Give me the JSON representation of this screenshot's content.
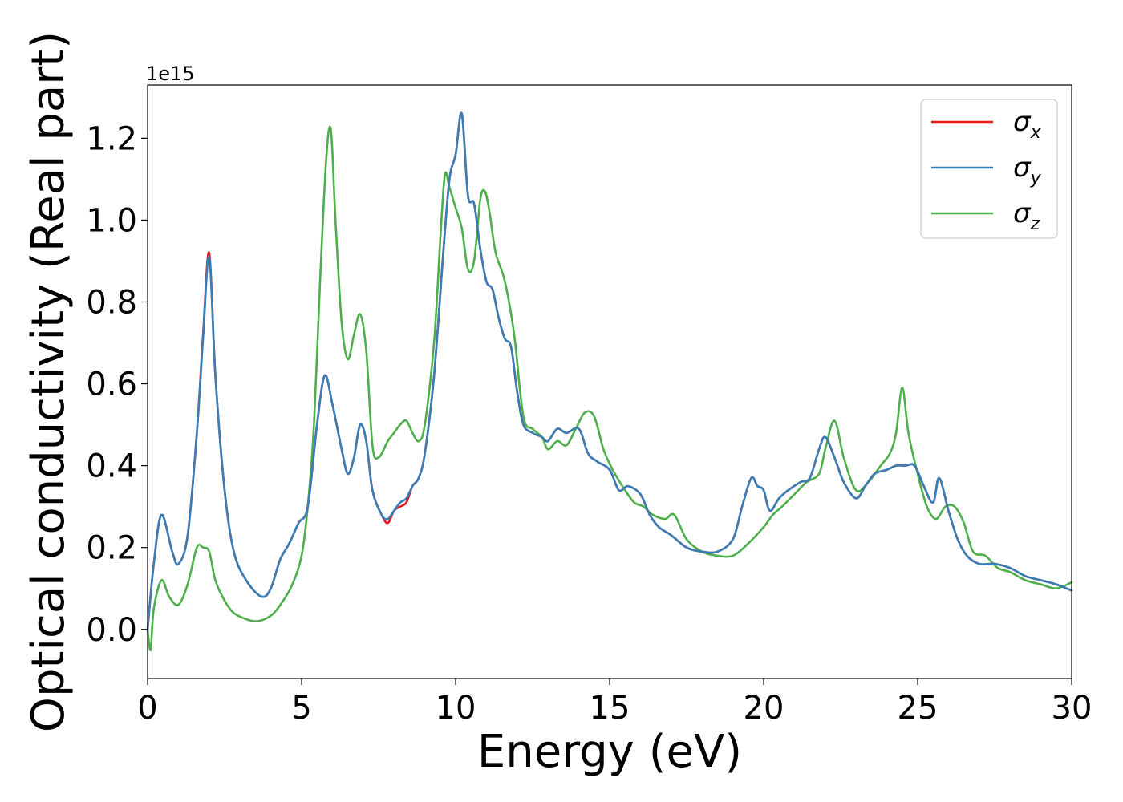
{
  "chart_data": {
    "type": "line",
    "title": "",
    "xlabel": "Energy (eV)",
    "ylabel": "Optical conductivity (Real part)",
    "y_offset_label": "1e15",
    "xlim": [
      0,
      30
    ],
    "ylim": [
      -0.12,
      1.33
    ],
    "xticks": [
      0,
      5,
      10,
      15,
      20,
      25,
      30
    ],
    "xtick_labels": [
      "0",
      "5",
      "10",
      "15",
      "20",
      "25",
      "30"
    ],
    "yticks": [
      0.0,
      0.2,
      0.4,
      0.6,
      0.8,
      1.0,
      1.2
    ],
    "ytick_labels": [
      "0.0",
      "0.2",
      "0.4",
      "0.6",
      "0.8",
      "1.0",
      "1.2"
    ],
    "grid": false,
    "legend_position": "top-right",
    "series": [
      {
        "name": "σx",
        "symbol": "σ",
        "subscript": "x",
        "color": "#e41a1c",
        "x": [
          0,
          0.2,
          0.45,
          0.8,
          1.0,
          1.3,
          1.6,
          1.8,
          2.0,
          2.2,
          2.5,
          2.8,
          3.2,
          3.7,
          4.0,
          4.3,
          4.6,
          4.9,
          5.2,
          5.5,
          5.75,
          6.0,
          6.3,
          6.5,
          6.7,
          6.9,
          7.1,
          7.3,
          7.6,
          7.8,
          8.0,
          8.2,
          8.4,
          8.6,
          8.8,
          9.0,
          9.3,
          9.6,
          9.8,
          10.0,
          10.2,
          10.4,
          10.6,
          10.8,
          11.0,
          11.2,
          11.4,
          11.6,
          11.8,
          12.0,
          12.2,
          12.5,
          12.8,
          13.0,
          13.3,
          13.6,
          14.0,
          14.3,
          14.6,
          15.0,
          15.3,
          15.6,
          16.0,
          16.3,
          16.6,
          17.0,
          17.5,
          18.0,
          18.5,
          19.0,
          19.3,
          19.6,
          19.8,
          20.0,
          20.2,
          20.5,
          20.8,
          21.2,
          21.5,
          21.8,
          22.0,
          22.3,
          22.6,
          23.0,
          23.3,
          23.6,
          24.0,
          24.3,
          24.6,
          24.9,
          25.2,
          25.5,
          25.7,
          26.0,
          26.3,
          26.6,
          27.0,
          27.5,
          28.0,
          28.5,
          29.0,
          29.5,
          30.0
        ],
        "y": [
          0.0,
          0.16,
          0.28,
          0.19,
          0.16,
          0.23,
          0.48,
          0.72,
          0.92,
          0.62,
          0.34,
          0.19,
          0.12,
          0.08,
          0.1,
          0.17,
          0.21,
          0.26,
          0.3,
          0.5,
          0.62,
          0.55,
          0.44,
          0.38,
          0.42,
          0.5,
          0.46,
          0.34,
          0.28,
          0.26,
          0.29,
          0.3,
          0.31,
          0.35,
          0.37,
          0.43,
          0.62,
          0.92,
          1.1,
          1.16,
          1.26,
          1.06,
          1.04,
          0.93,
          0.85,
          0.83,
          0.76,
          0.71,
          0.69,
          0.58,
          0.5,
          0.48,
          0.47,
          0.46,
          0.49,
          0.48,
          0.49,
          0.43,
          0.41,
          0.39,
          0.34,
          0.35,
          0.33,
          0.28,
          0.25,
          0.23,
          0.2,
          0.19,
          0.19,
          0.22,
          0.3,
          0.37,
          0.35,
          0.34,
          0.29,
          0.32,
          0.34,
          0.36,
          0.37,
          0.44,
          0.47,
          0.42,
          0.36,
          0.32,
          0.35,
          0.38,
          0.39,
          0.4,
          0.4,
          0.4,
          0.35,
          0.31,
          0.37,
          0.29,
          0.22,
          0.18,
          0.16,
          0.16,
          0.15,
          0.13,
          0.12,
          0.11,
          0.095
        ]
      },
      {
        "name": "σy",
        "symbol": "σ",
        "subscript": "y",
        "color": "#377eb8",
        "x": [
          0,
          0.2,
          0.45,
          0.8,
          1.0,
          1.3,
          1.6,
          1.8,
          2.0,
          2.2,
          2.5,
          2.8,
          3.2,
          3.7,
          4.0,
          4.3,
          4.6,
          4.9,
          5.2,
          5.5,
          5.75,
          6.0,
          6.3,
          6.5,
          6.7,
          6.9,
          7.1,
          7.3,
          7.6,
          7.8,
          8.0,
          8.2,
          8.4,
          8.6,
          8.8,
          9.0,
          9.3,
          9.6,
          9.8,
          10.0,
          10.2,
          10.4,
          10.6,
          10.8,
          11.0,
          11.2,
          11.4,
          11.6,
          11.8,
          12.0,
          12.2,
          12.5,
          12.8,
          13.0,
          13.3,
          13.6,
          14.0,
          14.3,
          14.6,
          15.0,
          15.3,
          15.6,
          16.0,
          16.3,
          16.6,
          17.0,
          17.5,
          18.0,
          18.5,
          19.0,
          19.3,
          19.6,
          19.8,
          20.0,
          20.2,
          20.5,
          20.8,
          21.2,
          21.5,
          21.8,
          22.0,
          22.3,
          22.6,
          23.0,
          23.3,
          23.6,
          24.0,
          24.3,
          24.6,
          24.9,
          25.2,
          25.5,
          25.7,
          26.0,
          26.3,
          26.6,
          27.0,
          27.5,
          28.0,
          28.5,
          29.0,
          29.5,
          30.0
        ],
        "y": [
          0.0,
          0.16,
          0.28,
          0.19,
          0.16,
          0.23,
          0.48,
          0.71,
          0.91,
          0.62,
          0.34,
          0.19,
          0.12,
          0.08,
          0.1,
          0.17,
          0.21,
          0.26,
          0.3,
          0.5,
          0.62,
          0.55,
          0.44,
          0.38,
          0.42,
          0.5,
          0.46,
          0.34,
          0.28,
          0.27,
          0.29,
          0.31,
          0.32,
          0.35,
          0.37,
          0.43,
          0.62,
          0.92,
          1.1,
          1.16,
          1.26,
          1.06,
          1.04,
          0.93,
          0.85,
          0.83,
          0.76,
          0.71,
          0.69,
          0.58,
          0.5,
          0.48,
          0.47,
          0.46,
          0.49,
          0.48,
          0.49,
          0.43,
          0.41,
          0.39,
          0.34,
          0.35,
          0.33,
          0.28,
          0.25,
          0.23,
          0.2,
          0.19,
          0.19,
          0.22,
          0.3,
          0.37,
          0.35,
          0.34,
          0.29,
          0.32,
          0.34,
          0.36,
          0.37,
          0.44,
          0.47,
          0.42,
          0.36,
          0.32,
          0.35,
          0.38,
          0.39,
          0.4,
          0.4,
          0.4,
          0.35,
          0.31,
          0.37,
          0.29,
          0.22,
          0.18,
          0.16,
          0.16,
          0.15,
          0.13,
          0.12,
          0.11,
          0.095
        ]
      },
      {
        "name": "σz",
        "symbol": "σ",
        "subscript": "z",
        "color": "#4daf4a",
        "x": [
          0,
          0.1,
          0.2,
          0.45,
          0.7,
          1.0,
          1.3,
          1.6,
          1.8,
          2.0,
          2.2,
          2.5,
          2.8,
          3.2,
          3.5,
          3.8,
          4.1,
          4.4,
          4.7,
          5.0,
          5.2,
          5.4,
          5.6,
          5.8,
          5.95,
          6.1,
          6.3,
          6.5,
          6.7,
          6.9,
          7.1,
          7.3,
          7.5,
          7.8,
          8.0,
          8.2,
          8.4,
          8.6,
          8.8,
          9.0,
          9.3,
          9.5,
          9.65,
          9.8,
          10.0,
          10.2,
          10.4,
          10.6,
          10.8,
          10.95,
          11.1,
          11.3,
          11.6,
          11.9,
          12.2,
          12.5,
          12.8,
          13.0,
          13.3,
          13.6,
          13.9,
          14.2,
          14.5,
          14.8,
          15.1,
          15.5,
          15.8,
          16.1,
          16.4,
          16.8,
          17.1,
          17.5,
          18.0,
          18.5,
          19.0,
          19.5,
          20.0,
          20.3,
          20.6,
          21.0,
          21.4,
          21.8,
          22.0,
          22.3,
          22.6,
          23.0,
          23.4,
          23.8,
          24.1,
          24.3,
          24.5,
          24.7,
          25.0,
          25.3,
          25.6,
          25.9,
          26.2,
          26.5,
          26.8,
          27.2,
          27.6,
          28.0,
          28.5,
          29.0,
          29.5,
          30.0
        ],
        "y": [
          0.0,
          -0.05,
          0.05,
          0.12,
          0.08,
          0.06,
          0.11,
          0.2,
          0.2,
          0.19,
          0.12,
          0.07,
          0.04,
          0.025,
          0.02,
          0.025,
          0.04,
          0.07,
          0.11,
          0.18,
          0.3,
          0.5,
          0.85,
          1.15,
          1.22,
          1.0,
          0.75,
          0.66,
          0.72,
          0.77,
          0.68,
          0.45,
          0.42,
          0.46,
          0.48,
          0.5,
          0.51,
          0.48,
          0.46,
          0.5,
          0.7,
          0.95,
          1.11,
          1.08,
          1.03,
          0.98,
          0.88,
          0.9,
          1.05,
          1.07,
          1.02,
          0.92,
          0.85,
          0.72,
          0.52,
          0.49,
          0.47,
          0.44,
          0.46,
          0.45,
          0.49,
          0.53,
          0.52,
          0.44,
          0.39,
          0.34,
          0.31,
          0.3,
          0.28,
          0.27,
          0.28,
          0.22,
          0.19,
          0.18,
          0.18,
          0.21,
          0.25,
          0.28,
          0.3,
          0.33,
          0.36,
          0.38,
          0.44,
          0.51,
          0.42,
          0.34,
          0.36,
          0.4,
          0.43,
          0.48,
          0.59,
          0.48,
          0.38,
          0.3,
          0.27,
          0.3,
          0.3,
          0.26,
          0.19,
          0.18,
          0.15,
          0.14,
          0.12,
          0.11,
          0.1,
          0.115
        ]
      }
    ]
  }
}
